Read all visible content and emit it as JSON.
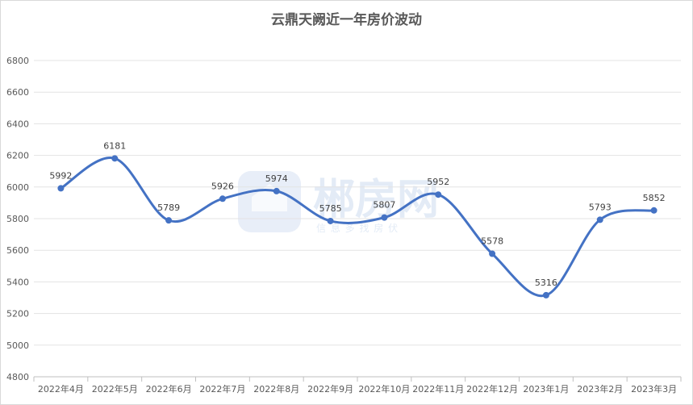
{
  "chart_data": {
    "type": "line",
    "title": "云鼎天阙近一年房价波动",
    "xlabel": "",
    "ylabel": "",
    "ylim": [
      4800,
      6800
    ],
    "ytick_step": 200,
    "grid": true,
    "categories": [
      "2022年4月",
      "2022年5月",
      "2022年6月",
      "2022年7月",
      "2022年8月",
      "2022年9月",
      "2022年10月",
      "2022年11月",
      "2022年12月",
      "2023年1月",
      "2023年2月",
      "2023年3月"
    ],
    "series": [
      {
        "values": [
          5992,
          6181,
          5789,
          5926,
          5974,
          5785,
          5807,
          5952,
          5578,
          5316,
          5793,
          5852
        ]
      }
    ],
    "line_color": "#4472c4"
  },
  "watermark": {
    "main": "郴房网",
    "sub": "信 息 多 找 房 伏"
  }
}
